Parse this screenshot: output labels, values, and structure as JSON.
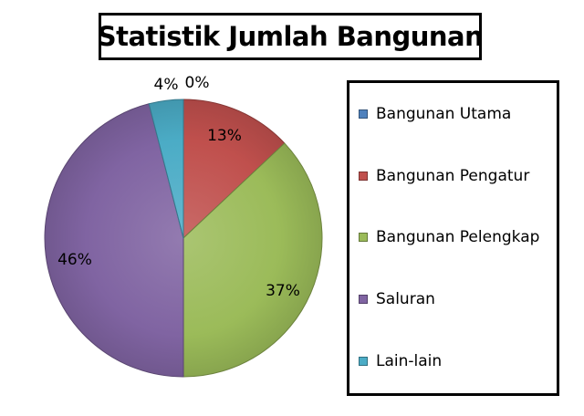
{
  "chart_data": {
    "type": "pie",
    "title": "Statistik Jumlah Bangunan",
    "legend_position": "right",
    "series": [
      {
        "name": "Bangunan Utama",
        "value": 0,
        "label": "0%",
        "color": "#4F81BD"
      },
      {
        "name": "Bangunan Pengatur",
        "value": 13,
        "label": "13%",
        "color": "#C0504D"
      },
      {
        "name": "Bangunan Pelengkap",
        "value": 37,
        "label": "37%",
        "color": "#9BBB59"
      },
      {
        "name": "Saluran",
        "value": 46,
        "label": "46%",
        "color": "#8064A2"
      },
      {
        "name": "Lain-lain",
        "value": 4,
        "label": "4%",
        "color": "#4BACC6"
      }
    ]
  }
}
